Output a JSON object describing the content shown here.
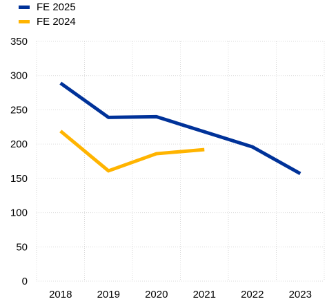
{
  "chart_data": {
    "type": "line",
    "title": "",
    "xlabel": "",
    "ylabel": "",
    "categories": [
      "2018",
      "2019",
      "2020",
      "2021",
      "2022",
      "2023"
    ],
    "ylim": [
      0,
      350
    ],
    "yticks": [
      0,
      50,
      100,
      150,
      200,
      250,
      300,
      350
    ],
    "grid": true,
    "legend_position": "top-left",
    "series": [
      {
        "name": "FE 2025",
        "color": "#003299",
        "values": [
          289,
          239,
          240,
          218,
          196,
          157
        ]
      },
      {
        "name": "FE 2024",
        "color": "#FFB400",
        "values": [
          219,
          161,
          186,
          192,
          null,
          null
        ]
      }
    ]
  }
}
